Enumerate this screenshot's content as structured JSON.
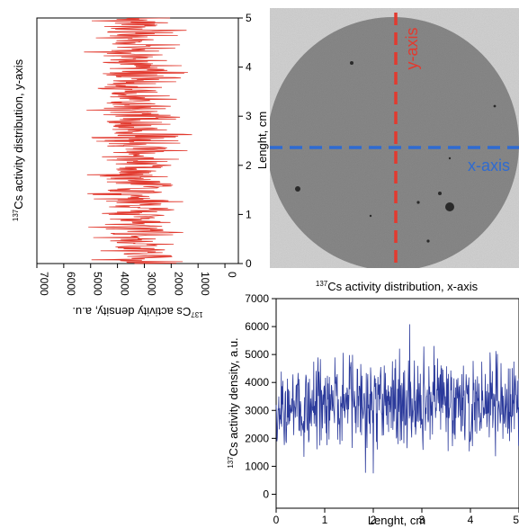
{
  "chart_data": [
    {
      "type": "line",
      "orientation": "rotated",
      "title": "",
      "title_rotated_parts": {
        "sup": "137",
        "text": "Cs activity distribution, y-axis"
      },
      "xlabel": "Lenght, cm",
      "ylabel_parts": {
        "sup": "137",
        "text": "Cs activity density, a.u."
      },
      "x_ticks": [
        "0",
        "1",
        "2",
        "3",
        "4",
        "5"
      ],
      "y_ticks": [
        "7000",
        "6000",
        "5000",
        "4000",
        "3000",
        "2000",
        "1000",
        "0"
      ],
      "xlim": [
        0,
        5
      ],
      "ylim": [
        7000,
        -500
      ],
      "color": "#e23a2f",
      "series": [
        {
          "profile": [
            {
              "x": 0.0,
              "y": 2800
            },
            {
              "x": 0.25,
              "y": 3200
            },
            {
              "x": 0.5,
              "y": 3400
            },
            {
              "x": 0.75,
              "y": 3300
            },
            {
              "x": 1.0,
              "y": 3300
            },
            {
              "x": 1.25,
              "y": 3100
            },
            {
              "x": 1.5,
              "y": 3200
            },
            {
              "x": 1.75,
              "y": 3350
            },
            {
              "x": 2.0,
              "y": 3300
            },
            {
              "x": 2.25,
              "y": 3200
            },
            {
              "x": 2.5,
              "y": 3100
            },
            {
              "x": 2.75,
              "y": 3250
            },
            {
              "x": 3.0,
              "y": 3300
            },
            {
              "x": 3.25,
              "y": 3400
            },
            {
              "x": 3.5,
              "y": 3400
            },
            {
              "x": 3.75,
              "y": 3250
            },
            {
              "x": 4.0,
              "y": 3200
            },
            {
              "x": 4.25,
              "y": 3300
            },
            {
              "x": 4.5,
              "y": 3400
            },
            {
              "x": 4.75,
              "y": 3250
            },
            {
              "x": 5.0,
              "y": 3200
            }
          ],
          "noise_range": [
            1000,
            6300
          ]
        }
      ]
    },
    {
      "type": "line",
      "title_parts": {
        "sup": "137",
        "text": "Cs activity distribution, x-axis"
      },
      "xlabel": "Lenght, cm",
      "ylabel_parts": {
        "sup": "137",
        "text": "Cs activity density, a.u."
      },
      "x_ticks": [
        "0",
        "1",
        "2",
        "3",
        "4",
        "5"
      ],
      "y_ticks": [
        "0",
        "1000",
        "2000",
        "3000",
        "4000",
        "5000",
        "6000",
        "7000"
      ],
      "xlim": [
        0,
        5
      ],
      "ylim": [
        -500,
        7000
      ],
      "color": "#2b3a9b",
      "series": [
        {
          "profile": [
            {
              "x": 0.0,
              "y": 3100
            },
            {
              "x": 0.25,
              "y": 3300
            },
            {
              "x": 0.5,
              "y": 3300
            },
            {
              "x": 0.75,
              "y": 3400
            },
            {
              "x": 1.0,
              "y": 3300
            },
            {
              "x": 1.25,
              "y": 3350
            },
            {
              "x": 1.5,
              "y": 3400
            },
            {
              "x": 1.75,
              "y": 3300
            },
            {
              "x": 2.0,
              "y": 3250
            },
            {
              "x": 2.25,
              "y": 3300
            },
            {
              "x": 2.5,
              "y": 3200
            },
            {
              "x": 2.75,
              "y": 3300
            },
            {
              "x": 3.0,
              "y": 3300
            },
            {
              "x": 3.25,
              "y": 3300
            },
            {
              "x": 3.5,
              "y": 3400
            },
            {
              "x": 3.75,
              "y": 3300
            },
            {
              "x": 4.0,
              "y": 3200
            },
            {
              "x": 4.25,
              "y": 3300
            },
            {
              "x": 4.5,
              "y": 3400
            },
            {
              "x": 4.75,
              "y": 3300
            },
            {
              "x": 5.0,
              "y": 3300
            }
          ],
          "noise_range": [
            500,
            6200
          ]
        }
      ]
    }
  ],
  "image": {
    "axis_labels": {
      "y": "y-axis",
      "x": "x-axis"
    },
    "y_axis_color": "#e23a2f",
    "x_axis_color": "#2f6bd1",
    "disk_color": "#8a8a8a",
    "background_color": "#d4d4d4"
  }
}
